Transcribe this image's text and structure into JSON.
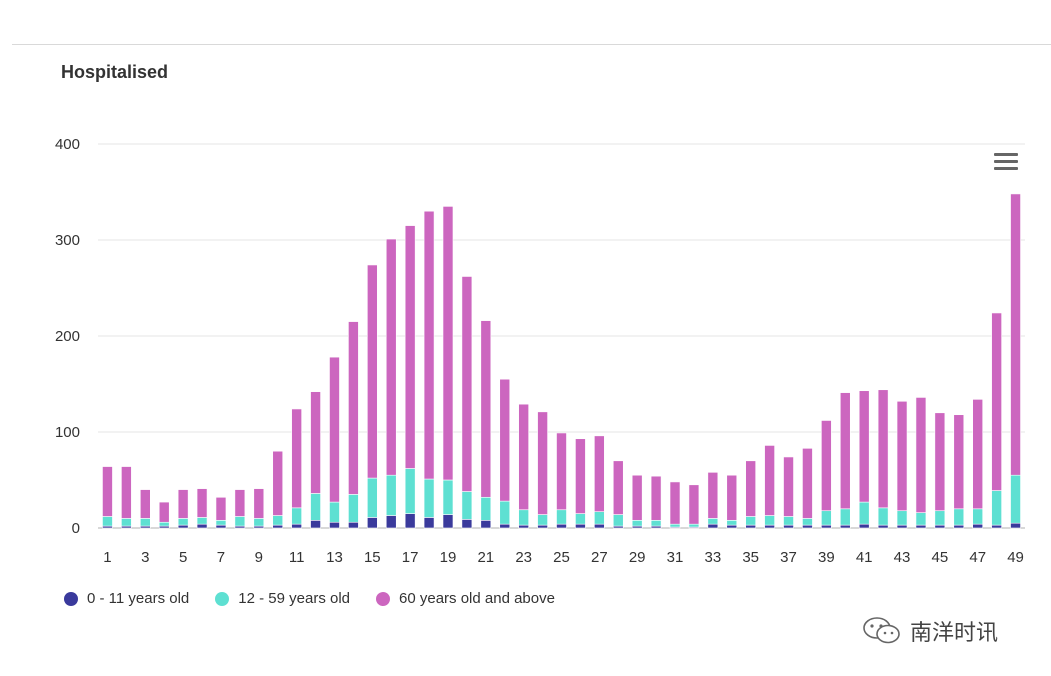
{
  "watermark": {
    "text": "南洋时讯",
    "icon": "wechat-icon"
  },
  "menu": {
    "icon": "hamburger-menu-icon"
  },
  "chart_data": {
    "type": "bar",
    "stacked": true,
    "title": "Hospitalised",
    "xlabel": "",
    "ylabel": "",
    "ylim": [
      0,
      400
    ],
    "yticks": [
      0,
      100,
      200,
      300,
      400
    ],
    "xtick_labels": [
      "1",
      "3",
      "5",
      "7",
      "9",
      "11",
      "13",
      "15",
      "17",
      "19",
      "21",
      "23",
      "25",
      "27",
      "29",
      "31",
      "33",
      "35",
      "37",
      "39",
      "41",
      "43",
      "45",
      "47",
      "49"
    ],
    "grid": "horizontal",
    "legend_position": "bottom-left",
    "categories": [
      1,
      2,
      3,
      4,
      5,
      6,
      7,
      8,
      9,
      10,
      11,
      12,
      13,
      14,
      15,
      16,
      17,
      18,
      19,
      20,
      21,
      22,
      23,
      24,
      25,
      26,
      27,
      28,
      29,
      30,
      31,
      32,
      33,
      34,
      35,
      36,
      37,
      38,
      39,
      40,
      41,
      42,
      43,
      44,
      45,
      46,
      47,
      48,
      49
    ],
    "series": [
      {
        "name": "0 - 11 years old",
        "color": "#3a3a9c",
        "values": [
          2,
          2,
          2,
          2,
          3,
          4,
          3,
          2,
          2,
          3,
          4,
          8,
          6,
          6,
          11,
          13,
          15,
          11,
          14,
          9,
          8,
          4,
          3,
          3,
          4,
          4,
          4,
          2,
          2,
          2,
          1,
          1,
          4,
          3,
          3,
          3,
          3,
          3,
          3,
          3,
          4,
          3,
          3,
          3,
          3,
          3,
          4,
          3,
          5
        ]
      },
      {
        "name": "12 - 59 years old",
        "color": "#5ee0d2",
        "values": [
          10,
          8,
          8,
          4,
          7,
          7,
          5,
          10,
          8,
          10,
          17,
          28,
          21,
          29,
          41,
          42,
          47,
          40,
          36,
          29,
          24,
          24,
          16,
          11,
          15,
          11,
          13,
          12,
          6,
          6,
          3,
          3,
          6,
          5,
          9,
          10,
          9,
          7,
          15,
          17,
          23,
          18,
          15,
          13,
          15,
          17,
          16,
          36,
          50
        ]
      },
      {
        "name": "60 years old and above",
        "color": "#cc66bf",
        "values": [
          52,
          54,
          30,
          21,
          30,
          30,
          24,
          28,
          31,
          67,
          103,
          106,
          151,
          180,
          222,
          246,
          253,
          279,
          285,
          224,
          184,
          127,
          110,
          107,
          80,
          78,
          79,
          56,
          47,
          46,
          44,
          41,
          48,
          47,
          58,
          73,
          62,
          73,
          94,
          121,
          116,
          123,
          114,
          120,
          102,
          98,
          114,
          185,
          293
        ]
      }
    ]
  }
}
